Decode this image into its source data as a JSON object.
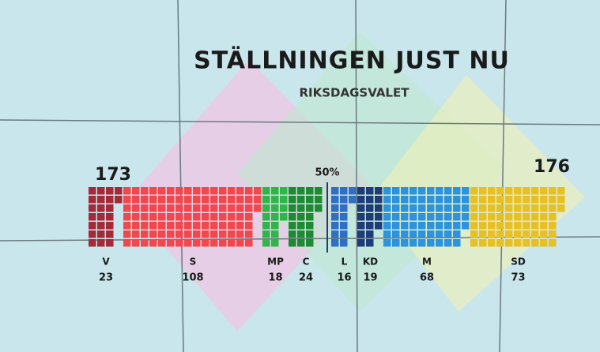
{
  "chart_data": {
    "type": "waffle",
    "title": "STÄLLNINGEN JUST NU",
    "subtitle": "RIKSDAGSVALET",
    "bloc_totals": [
      173,
      176
    ],
    "majority_marker": {
      "value": 50,
      "label": "50%"
    },
    "categories": [
      "V",
      "S",
      "MP",
      "C",
      "L",
      "KD",
      "M",
      "SD"
    ],
    "values": [
      23,
      108,
      18,
      24,
      16,
      19,
      68,
      73
    ],
    "colors": [
      "#a32a38",
      "#f0484c",
      "#2fb64a",
      "#1d8a34",
      "#2f6fc4",
      "#1e3c78",
      "#2c93dc",
      "#e6c024"
    ],
    "left_bloc_size": 4
  }
}
